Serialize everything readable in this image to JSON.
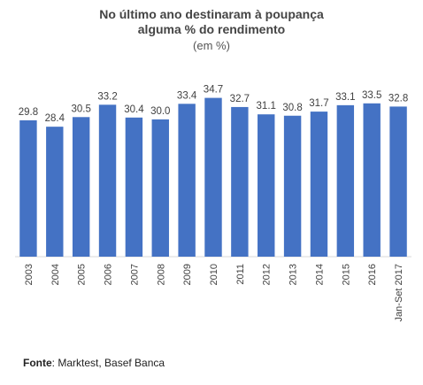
{
  "chart_data": {
    "type": "bar",
    "title_lines": [
      "No último ano destinaram à poupança",
      "alguma % do rendimento"
    ],
    "subtitle": "(em %)",
    "categories": [
      "2003",
      "2004",
      "2005",
      "2006",
      "2007",
      "2008",
      "2009",
      "2010",
      "2011",
      "2012",
      "2013",
      "2014",
      "2015",
      "2016",
      "Jan-Set 2017"
    ],
    "values": [
      29.8,
      28.4,
      30.5,
      33.2,
      30.4,
      30.0,
      33.4,
      34.7,
      32.7,
      31.1,
      30.8,
      31.7,
      33.1,
      33.5,
      32.8
    ],
    "value_labels": [
      "29.8",
      "28.4",
      "30.5",
      "33.2",
      "30.4",
      "30.0",
      "33.4",
      "34.7",
      "32.7",
      "31.1",
      "30.8",
      "31.7",
      "33.1",
      "33.5",
      "32.8"
    ],
    "ylim": [
      0,
      35.2
    ],
    "bar_color": "#4472C4",
    "grid": false
  },
  "source": {
    "label": "Fonte",
    "text": ": Marktest, Basef Banca"
  }
}
